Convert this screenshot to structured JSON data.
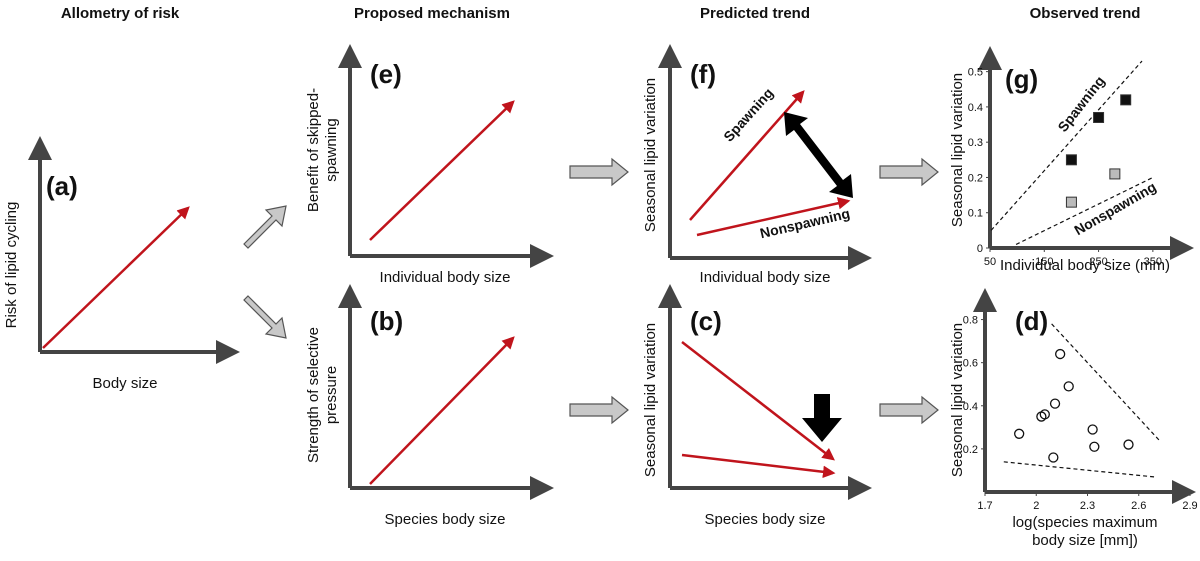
{
  "columns": [
    "Allometry of risk",
    "Proposed mechanism",
    "Predicted trend",
    "Observed trend"
  ],
  "panels": {
    "a": {
      "label": "(a)",
      "ylabel": [
        "Risk of lipid cycling"
      ],
      "xlabel": "Body size"
    },
    "e": {
      "label": "(e)",
      "ylabel": [
        "Benefit of skipped-",
        "spawning"
      ],
      "xlabel": "Individual body size"
    },
    "b": {
      "label": "(b)",
      "ylabel": [
        "Strength of selective",
        "pressure"
      ],
      "xlabel": "Species body size"
    },
    "f": {
      "label": "(f)",
      "ylabel": [
        "Seasonal lipid variation"
      ],
      "xlabel": "Individual body size",
      "annotations": [
        "Spawning",
        "Nonspawning"
      ]
    },
    "c": {
      "label": "(c)",
      "ylabel": [
        "Seasonal lipid variation"
      ],
      "xlabel": "Species body size"
    }
  },
  "chart_data": [
    {
      "type": "scatter",
      "label": "(g)",
      "ylabel": "Seasonal lipid variation",
      "xlabel": [
        "Individual body size (mm)"
      ],
      "xlim": [
        50,
        400
      ],
      "xticks": [
        50,
        150,
        250,
        350
      ],
      "ylim": [
        0,
        0.55
      ],
      "yticks": [
        0,
        0.1,
        0.2,
        0.3,
        0.4,
        0.5
      ],
      "series": [
        {
          "color": "#111111",
          "marker": "square",
          "x": [
            200,
            250,
            300
          ],
          "values": [
            0.25,
            0.37,
            0.42
          ]
        },
        {
          "color": "#bbbbbb",
          "marker": "square",
          "x": [
            200,
            280
          ],
          "values": [
            0.13,
            0.21
          ]
        }
      ],
      "lines": [
        {
          "x": [
            52,
            330
          ],
          "y": [
            0.05,
            0.53
          ]
        },
        {
          "x": [
            98,
            350
          ],
          "y": [
            0.01,
            0.2
          ]
        }
      ],
      "annotations": [
        {
          "text": "Spawning",
          "x": 225,
          "y": 0.4,
          "angle": -52
        },
        {
          "text": "Nonspawning",
          "x": 285,
          "y": 0.1,
          "angle": -30
        }
      ]
    },
    {
      "type": "scatter",
      "label": "(d)",
      "ylabel": "Seasonal lipid variation",
      "xlabel": [
        "log(species maximum",
        "body size [mm])"
      ],
      "xlim": [
        1.7,
        2.9
      ],
      "xticks": [
        1.7,
        2,
        2.3,
        2.6,
        2.9
      ],
      "ylim": [
        0,
        0.9
      ],
      "yticks": [
        0.2,
        0.4,
        0.6,
        0.8
      ],
      "series": [
        {
          "color": "#111111",
          "marker": "circle",
          "x": [
            1.9,
            2.03,
            2.05,
            2.11,
            2.14,
            2.19,
            2.1,
            2.33,
            2.34,
            2.54
          ],
          "values": [
            0.27,
            0.35,
            0.36,
            0.41,
            0.64,
            0.49,
            0.16,
            0.29,
            0.21,
            0.22
          ]
        }
      ],
      "lines": [
        {
          "x": [
            2.09,
            2.72
          ],
          "y": [
            0.78,
            0.24
          ]
        },
        {
          "x": [
            1.81,
            2.69
          ],
          "y": [
            0.14,
            0.07
          ]
        }
      ],
      "annotations": []
    }
  ]
}
